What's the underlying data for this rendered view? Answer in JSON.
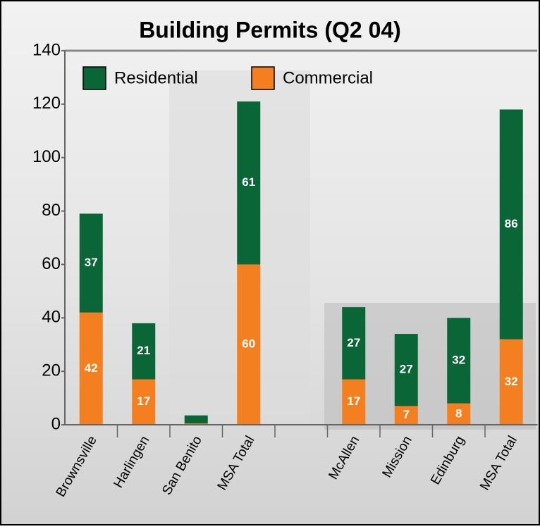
{
  "chart_data": {
    "type": "stacked_bar",
    "title": "Building Permits (Q2 04)",
    "categories": [
      "Brownsville",
      "Harlingen",
      "San Benito",
      "MSA Total",
      null,
      "McAllen",
      "Mission",
      "Edinburg",
      "MSA Total"
    ],
    "series": [
      {
        "name": "Commercial",
        "color": "#f47f20",
        "values": [
          42,
          17,
          0.5,
          60,
          null,
          17,
          7,
          8,
          32
        ],
        "value_labels": [
          "42",
          "17",
          null,
          "60",
          null,
          "17",
          "7",
          "8",
          "32"
        ]
      },
      {
        "name": "Residential",
        "color": "#0a6637",
        "values": [
          37,
          21,
          3,
          61,
          null,
          27,
          27,
          32,
          86
        ],
        "value_labels": [
          "37",
          "21",
          null,
          "61",
          null,
          "27",
          "27",
          "32",
          "86"
        ]
      }
    ],
    "ylim": [
      0,
      140
    ],
    "yticks": [
      0,
      20,
      40,
      60,
      80,
      100,
      120,
      140
    ],
    "legend": "top-left"
  }
}
